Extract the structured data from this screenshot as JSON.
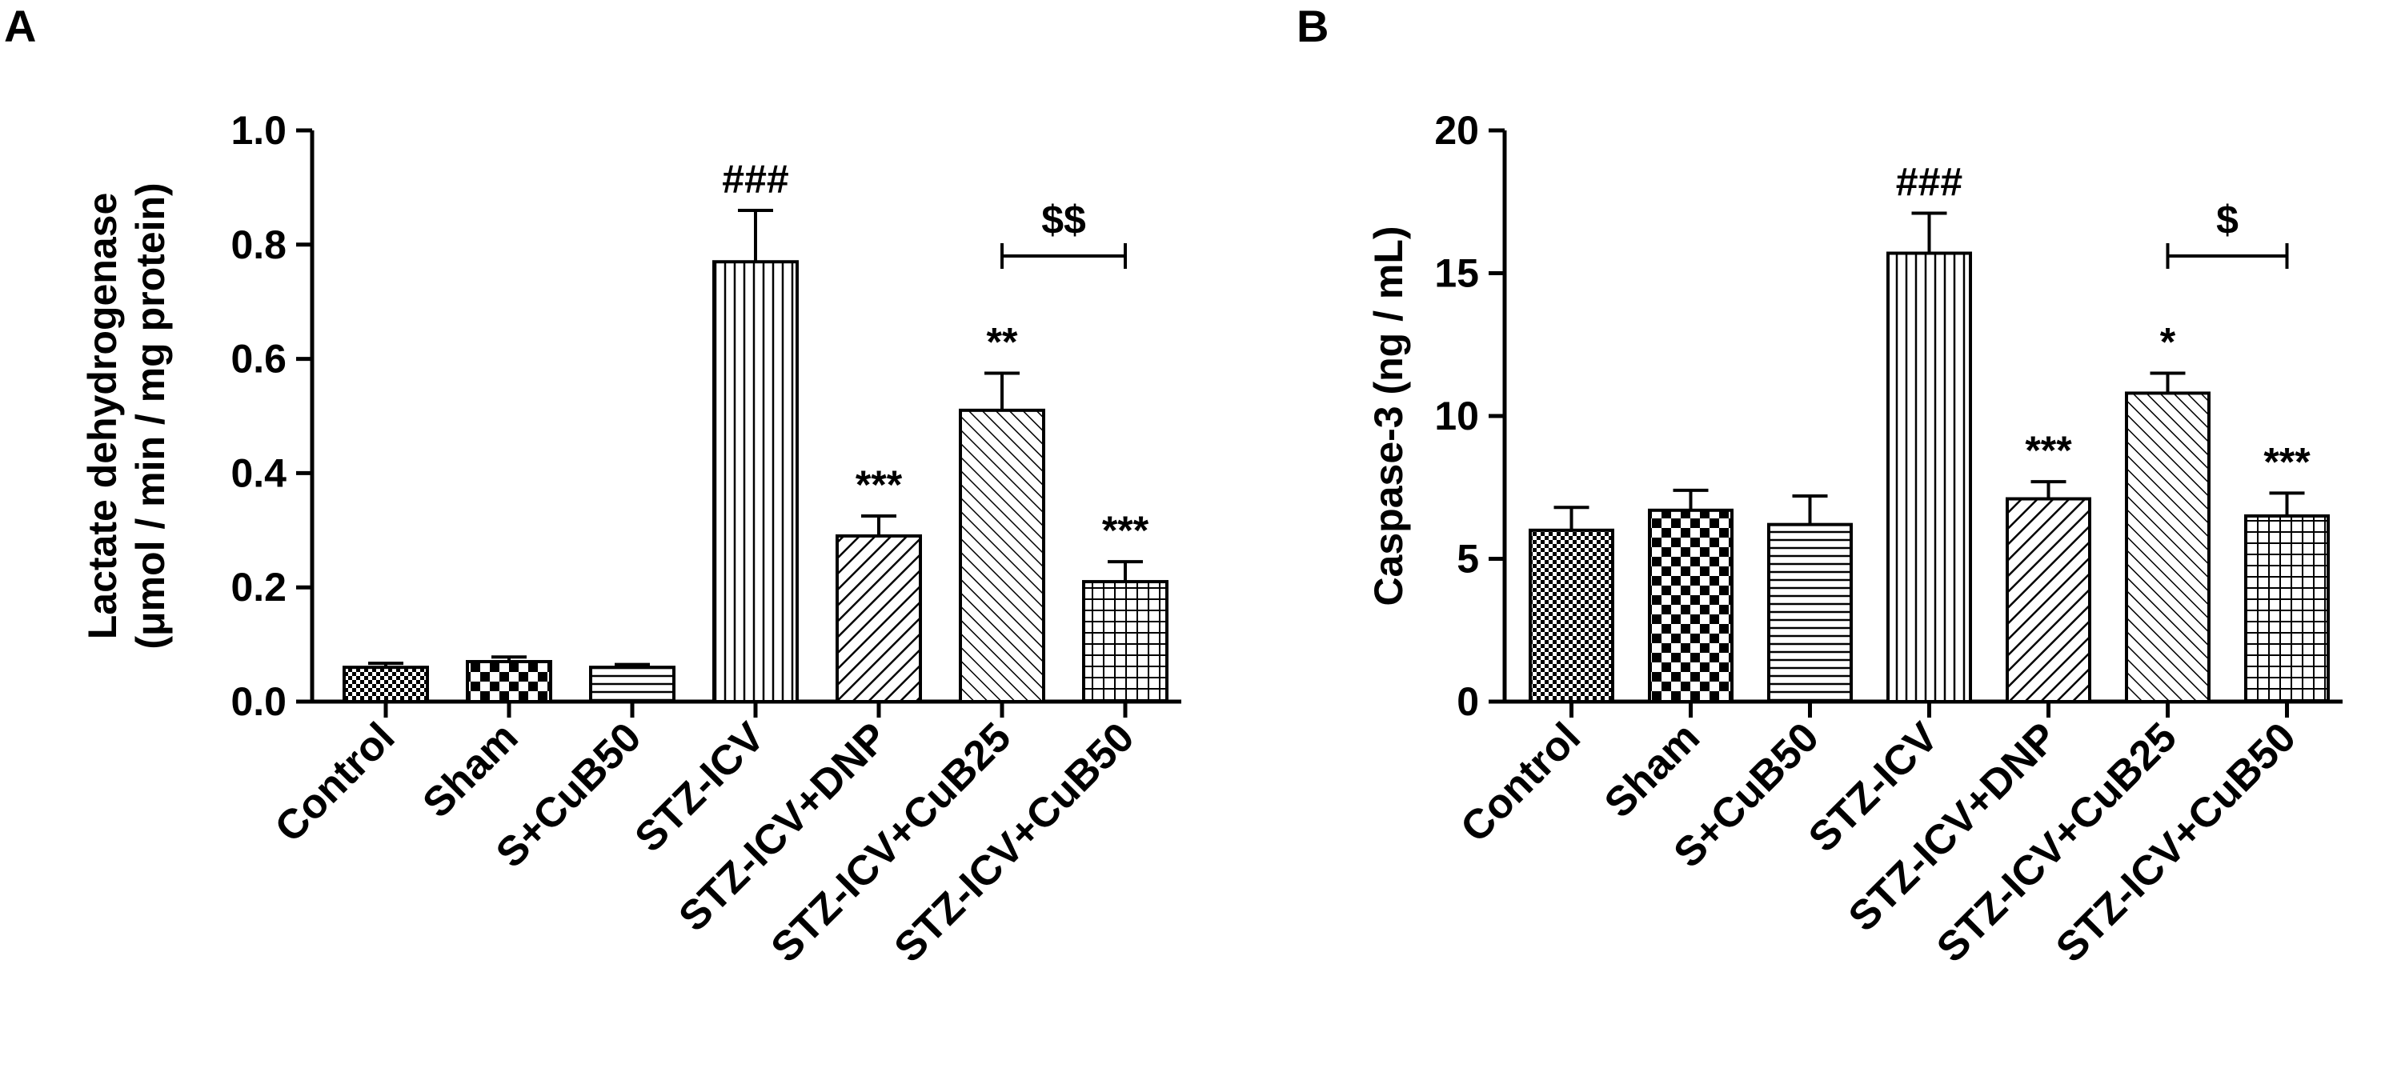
{
  "chart_data": [
    {
      "panel": "A",
      "type": "bar",
      "ylabel_lines": [
        "Lactate dehydrogenase",
        "(μmol / min / mg protein)"
      ],
      "ylim": [
        0,
        1.0
      ],
      "yticks": [
        "0.0",
        "0.2",
        "0.4",
        "0.6",
        "0.8",
        "1.0"
      ],
      "categories": [
        "Control",
        "Sham",
        "S+CuB50",
        "STZ-ICV",
        "STZ-ICV+DNP",
        "STZ-ICV+CuB25",
        "STZ-ICV+CuB50"
      ],
      "values": [
        0.06,
        0.07,
        0.06,
        0.77,
        0.29,
        0.51,
        0.21
      ],
      "errors": [
        0.007,
        0.008,
        0.005,
        0.09,
        0.035,
        0.065,
        0.035
      ],
      "patterns": [
        "fine-check",
        "checker",
        "horizontal",
        "vertical",
        "diag-right",
        "diag-left",
        "grid"
      ],
      "annotations": [
        "",
        "",
        "",
        "###",
        "***",
        "**",
        "***"
      ],
      "bracket": {
        "from": 5,
        "to": 6,
        "label": "$$"
      },
      "grid": false,
      "legend": "none"
    },
    {
      "panel": "B",
      "type": "bar",
      "ylabel_lines": [
        "Caspase-3 (ng / mL)"
      ],
      "ylim": [
        0,
        20
      ],
      "yticks": [
        "0",
        "5",
        "10",
        "15",
        "20"
      ],
      "categories": [
        "Control",
        "Sham",
        "S+CuB50",
        "STZ-ICV",
        "STZ-ICV+DNP",
        "STZ-ICV+CuB25",
        "STZ-ICV+CuB50"
      ],
      "values": [
        6.0,
        6.7,
        6.2,
        15.7,
        7.1,
        10.8,
        6.5
      ],
      "errors": [
        0.8,
        0.7,
        1.0,
        1.4,
        0.6,
        0.7,
        0.8
      ],
      "patterns": [
        "fine-check",
        "checker",
        "horizontal",
        "vertical",
        "diag-right",
        "diag-left",
        "grid"
      ],
      "annotations": [
        "",
        "",
        "",
        "###",
        "***",
        "*",
        "***"
      ],
      "bracket": {
        "from": 5,
        "to": 6,
        "label": "$"
      },
      "grid": false,
      "legend": "none"
    }
  ]
}
